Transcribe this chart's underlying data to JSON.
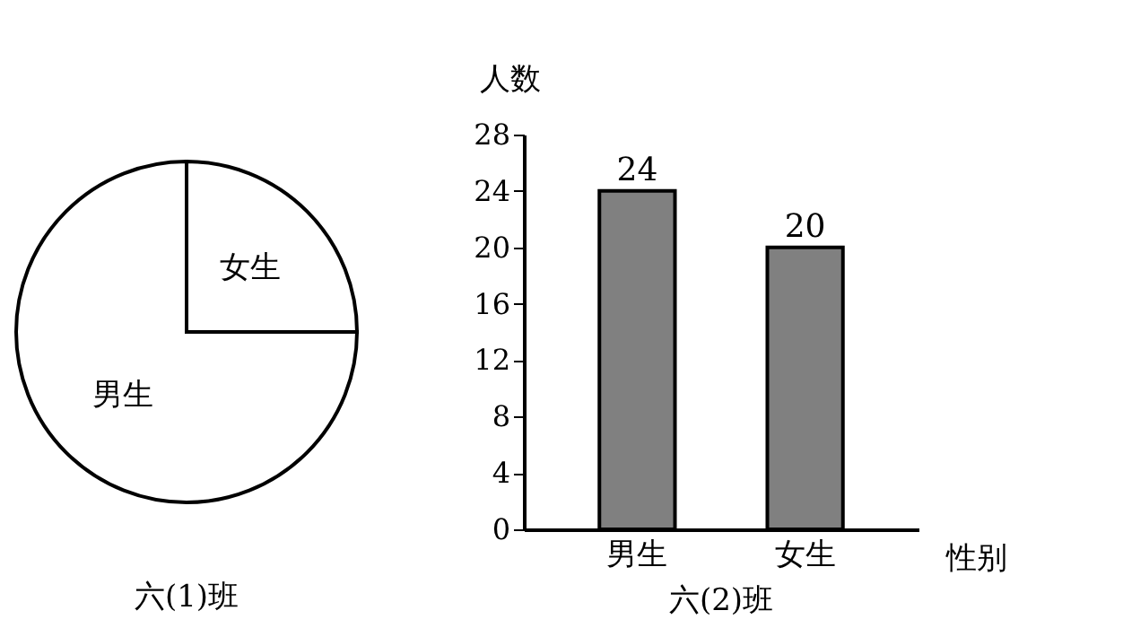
{
  "chart_data": [
    {
      "type": "pie",
      "title": "六(1)班",
      "categories": [
        "女生",
        "男生"
      ],
      "values": [
        25,
        75
      ],
      "colors": [
        "#ffffff",
        "#ffffff"
      ]
    },
    {
      "type": "bar",
      "title": "六(2)班",
      "xlabel": "性别",
      "ylabel": "人数",
      "categories": [
        "男生",
        "女生"
      ],
      "values": [
        24,
        20
      ],
      "color": "#808080",
      "ylim": [
        0,
        28
      ],
      "yticks": [
        0,
        4,
        8,
        12,
        16,
        20,
        24,
        28
      ],
      "data_labels": true,
      "grid": false
    }
  ]
}
